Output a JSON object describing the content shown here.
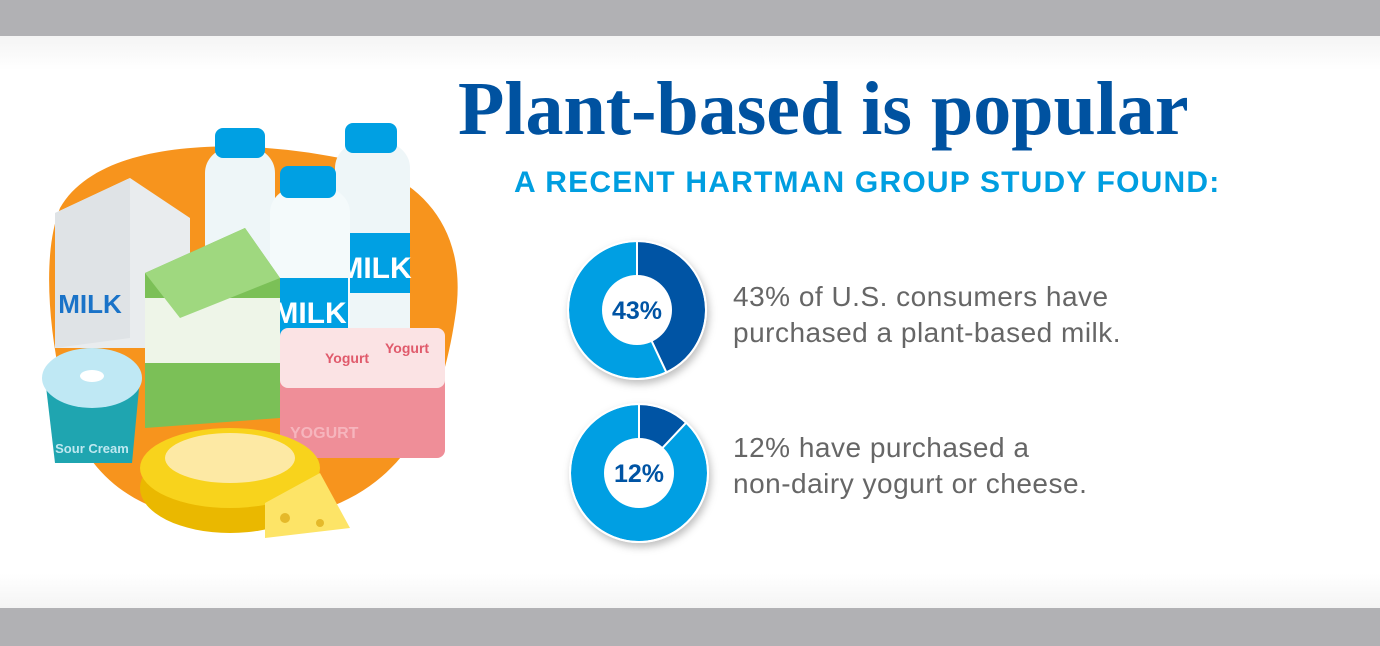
{
  "title": "Plant-based is popular",
  "subtitle": "A RECENT HARTMAN GROUP STUDY FOUND:",
  "stats": [
    {
      "value_label": "43%",
      "lines": [
        "43% of U.S. consumers have",
        "purchased a plant-based milk."
      ]
    },
    {
      "value_label": "12%",
      "lines": [
        "12% have purchased a",
        "non-dairy yogurt or cheese."
      ]
    }
  ],
  "chart_data": [
    {
      "type": "pie",
      "style": "donut",
      "values": [
        43,
        57
      ],
      "center_label": "43%",
      "colors": [
        "#0054a4",
        "#009fe3"
      ]
    },
    {
      "type": "pie",
      "style": "donut",
      "values": [
        12,
        88
      ],
      "center_label": "12%",
      "colors": [
        "#0054a4",
        "#009fe3"
      ]
    }
  ],
  "illustration": {
    "milk_label": "MILK",
    "yogurt_label": "Yogurt",
    "yogurt_side": "YOGURT",
    "sour_cream_label": "Sour Cream"
  },
  "colors": {
    "title": "#0052a0",
    "subtitle": "#009ee0",
    "blob": "#f7941d",
    "frame": "#b1b1b4"
  }
}
